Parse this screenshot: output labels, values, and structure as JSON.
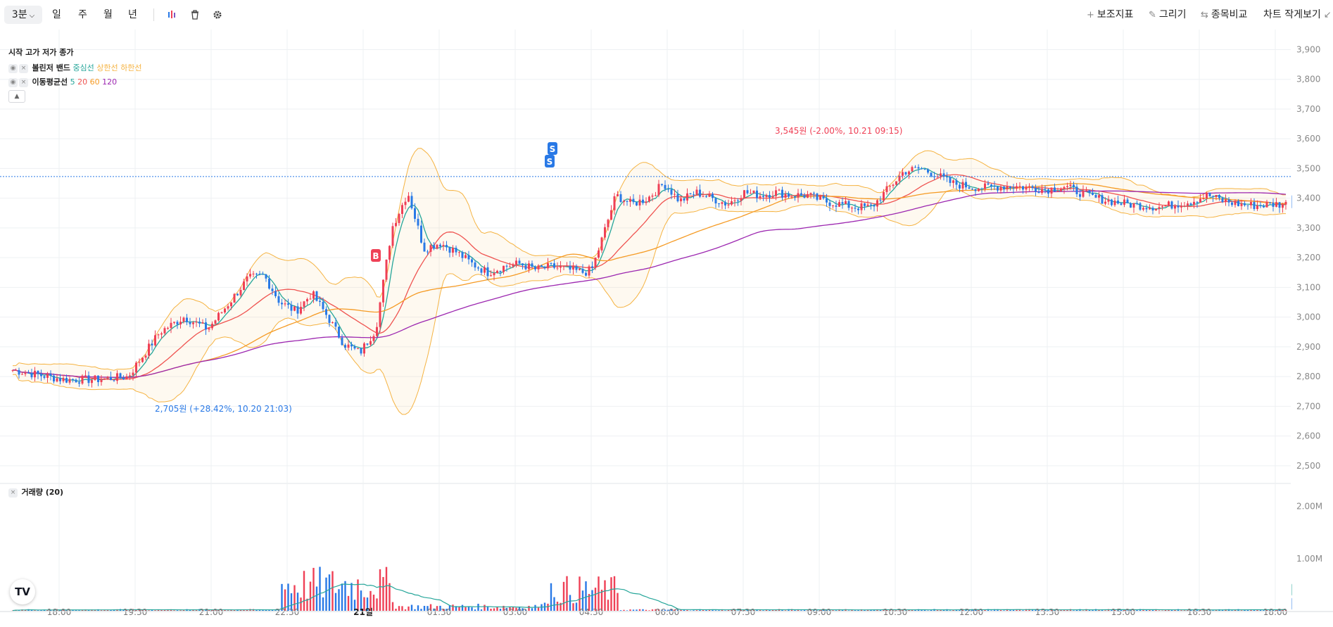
{
  "toolbar": {
    "interval": "3분",
    "periods": [
      "일",
      "주",
      "월",
      "년"
    ],
    "right": [
      "보조지표",
      "그리기",
      "종목비교",
      "차트 작게보기"
    ]
  },
  "legend": {
    "ohlc_label": "시작 고가 저가 종가",
    "bollinger": {
      "name": "볼린저 밴드",
      "center": "중심선",
      "upper": "상한선",
      "lower": "하한선"
    },
    "ma": {
      "name": "이동평균선",
      "periods": [
        "5",
        "20",
        "60",
        "120"
      ]
    },
    "volume": "거래량 (20)"
  },
  "chart_data": {
    "type": "candlestick",
    "x_ticks": [
      "18:00",
      "19:30",
      "21:00",
      "22:30",
      "21일",
      "01:30",
      "03:00",
      "04:30",
      "06:00",
      "07:30",
      "09:00",
      "10:30",
      "12:00",
      "13:30",
      "15:00",
      "16:30",
      "18:00"
    ],
    "y_ticks": [
      "3,900",
      "3,800",
      "3,700",
      "3,600",
      "3,500",
      "3,400",
      "3,300",
      "3,200",
      "3,100",
      "3,000",
      "2,900",
      "2,800",
      "2,700",
      "2,600",
      "2,500"
    ],
    "ylim": [
      2450,
      3920
    ],
    "volume_ticks": [
      "2.00M",
      "1.00M"
    ],
    "last_price": "3,473",
    "ma_price": "3,388",
    "volume_last": "561",
    "volume_ma": "109",
    "low_annotation": "2,705원 (+28.42%, 10.20 21:03)",
    "high_annotation": "3,545원 (-2.00%, 10.21 09:15)",
    "signals": [
      {
        "label": "S",
        "time": "03:42",
        "price": 3560
      },
      {
        "label": "S",
        "time": "03:42",
        "price": 3515
      },
      {
        "label": "B",
        "time": "00:18",
        "price": 3165
      }
    ],
    "series": [
      {
        "name": "5",
        "color": "#26a69a"
      },
      {
        "name": "20",
        "color": "#ef5350"
      },
      {
        "name": "60",
        "color": "#f59a23"
      },
      {
        "name": "120",
        "color": "#9c27b0"
      }
    ],
    "price_keypoints": [
      [
        0,
        2830
      ],
      [
        40,
        2810
      ],
      [
        80,
        2790
      ],
      [
        120,
        2790
      ],
      [
        160,
        2800
      ],
      [
        200,
        2950
      ],
      [
        230,
        3000
      ],
      [
        260,
        2960
      ],
      [
        290,
        3060
      ],
      [
        310,
        3130
      ],
      [
        330,
        3140
      ],
      [
        350,
        3050
      ],
      [
        370,
        3020
      ],
      [
        390,
        3080
      ],
      [
        410,
        3000
      ],
      [
        430,
        2910
      ],
      [
        450,
        2880
      ],
      [
        470,
        2960
      ],
      [
        490,
        3300
      ],
      [
        510,
        3420
      ],
      [
        530,
        3230
      ],
      [
        550,
        3250
      ],
      [
        570,
        3220
      ],
      [
        590,
        3180
      ],
      [
        610,
        3150
      ],
      [
        630,
        3170
      ],
      [
        650,
        3180
      ],
      [
        670,
        3160
      ],
      [
        690,
        3170
      ],
      [
        710,
        3160
      ],
      [
        730,
        3150
      ],
      [
        740,
        3160
      ],
      [
        750,
        3240
      ],
      [
        770,
        3410
      ],
      [
        790,
        3380
      ],
      [
        810,
        3400
      ],
      [
        830,
        3450
      ],
      [
        850,
        3390
      ],
      [
        870,
        3420
      ],
      [
        890,
        3400
      ],
      [
        910,
        3380
      ],
      [
        930,
        3420
      ],
      [
        950,
        3410
      ],
      [
        970,
        3420
      ],
      [
        990,
        3410
      ],
      [
        1010,
        3410
      ],
      [
        1030,
        3390
      ],
      [
        1050,
        3380
      ],
      [
        1070,
        3370
      ],
      [
        1090,
        3370
      ],
      [
        1110,
        3430
      ],
      [
        1130,
        3490
      ],
      [
        1150,
        3500
      ],
      [
        1170,
        3480
      ],
      [
        1190,
        3450
      ],
      [
        1210,
        3440
      ],
      [
        1230,
        3435
      ],
      [
        1250,
        3440
      ],
      [
        1270,
        3440
      ],
      [
        1290,
        3435
      ],
      [
        1310,
        3430
      ],
      [
        1330,
        3440
      ],
      [
        1350,
        3420
      ],
      [
        1370,
        3400
      ],
      [
        1390,
        3390
      ],
      [
        1410,
        3380
      ],
      [
        1430,
        3375
      ],
      [
        1450,
        3370
      ],
      [
        1470,
        3380
      ],
      [
        1490,
        3390
      ],
      [
        1510,
        3410
      ],
      [
        1530,
        3390
      ],
      [
        1550,
        3380
      ],
      [
        1570,
        3375
      ],
      [
        1590,
        3380
      ]
    ]
  },
  "colors": {
    "up": "#ef4056",
    "down": "#2979e6",
    "accent_blue": "#2979e6",
    "signal_red": "#ef4056",
    "band": "#f5b342"
  }
}
